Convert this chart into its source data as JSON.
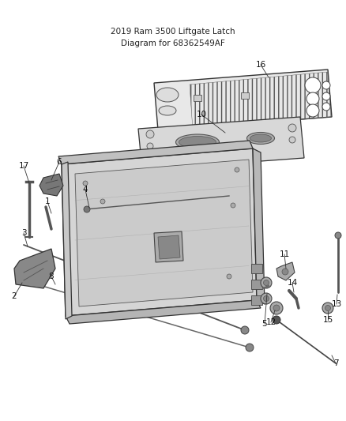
{
  "bg_color": "#ffffff",
  "fig_width": 4.38,
  "fig_height": 5.33,
  "dpi": 100,
  "title_line1": "2019 Ram 3500 Liftgate Latch",
  "title_line2": "Diagram for 68362549AF"
}
